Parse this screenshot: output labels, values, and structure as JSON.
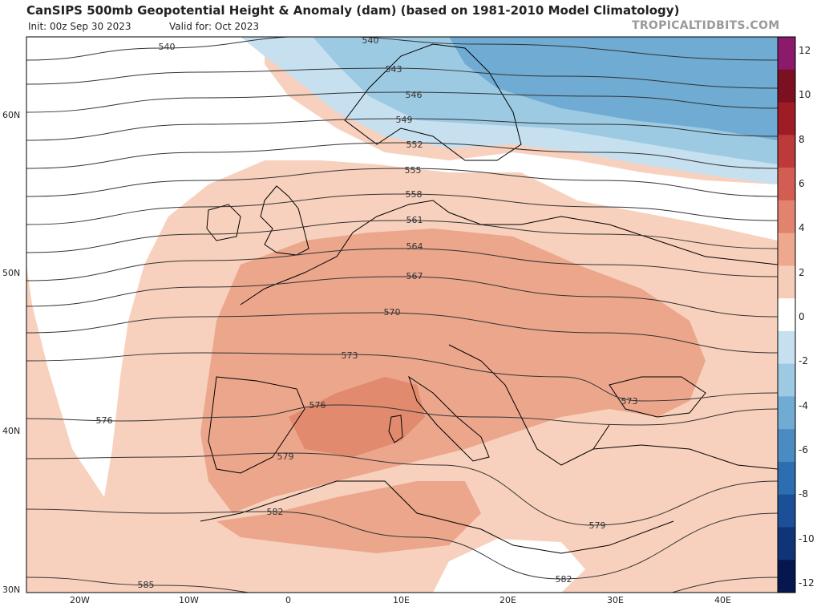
{
  "header": {
    "title": "CanSIPS 500mb Geopotential Height & Anomaly (dam) (based on 1981-2010 Model Climatology)",
    "init": "Init: 00z Sep 30 2023",
    "valid": "Valid for: Oct 2023",
    "brand": "TROPICALTIDBITS.COM"
  },
  "axes": {
    "lat_labels": [
      "60N",
      "50N",
      "40N",
      "30N"
    ],
    "lon_labels": [
      "20W",
      "10W",
      "0",
      "10E",
      "20E",
      "30E",
      "40E"
    ]
  },
  "colorbar": {
    "labels": [
      "12",
      "10",
      "8",
      "6",
      "4",
      "2",
      "0",
      "-2",
      "-4",
      "-6",
      "-8",
      "-10",
      "-12"
    ],
    "colors": [
      "#8b1a6a",
      "#7a1020",
      "#9e1c26",
      "#bc3a3a",
      "#d25d52",
      "#e1836e",
      "#eda88e",
      "#f6cdb8",
      "#ffffff",
      "#c7e0ef",
      "#9ccae3",
      "#6fabd2",
      "#4a8cc2",
      "#2d6eb0",
      "#1b4f97",
      "#0f3478",
      "#06174f"
    ]
  },
  "contours": [
    {
      "label": "540"
    },
    {
      "label": "543"
    },
    {
      "label": "546"
    },
    {
      "label": "549"
    },
    {
      "label": "552"
    },
    {
      "label": "555"
    },
    {
      "label": "558"
    },
    {
      "label": "561"
    },
    {
      "label": "564"
    },
    {
      "label": "567"
    },
    {
      "label": "570"
    },
    {
      "label": "573"
    },
    {
      "label": "576"
    },
    {
      "label": "579"
    },
    {
      "label": "582"
    },
    {
      "label": "585"
    }
  ],
  "extra_labels": [
    "540",
    "573",
    "576",
    "579",
    "582"
  ]
}
